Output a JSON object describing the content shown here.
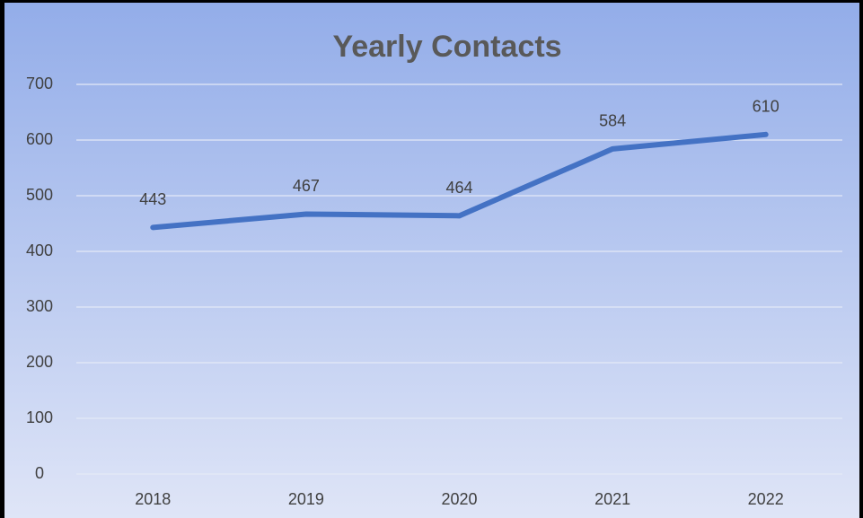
{
  "chart_data": {
    "type": "line",
    "title": "Yearly Contacts",
    "categories": [
      "2018",
      "2019",
      "2020",
      "2021",
      "2022"
    ],
    "values": [
      443,
      467,
      464,
      584,
      610
    ],
    "color": "#4472c4",
    "ylim": [
      0,
      700
    ],
    "yticks": [
      0,
      100,
      200,
      300,
      400,
      500,
      600,
      700
    ],
    "grid": true
  }
}
